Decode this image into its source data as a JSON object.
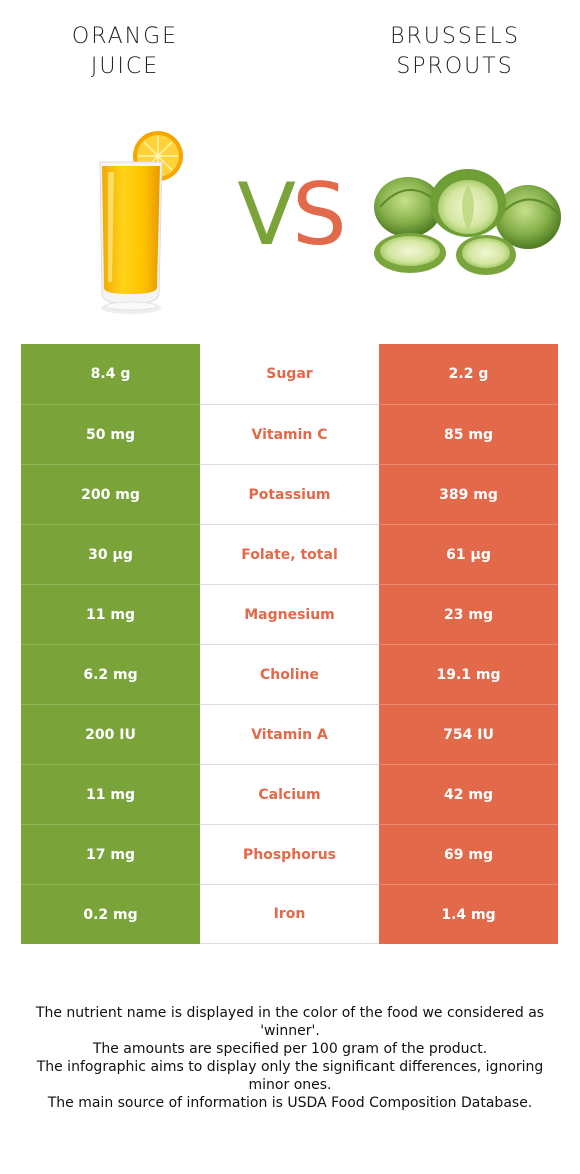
{
  "left_food": {
    "title_line1": "ORANGE",
    "title_line2": "JUICE",
    "color": "#7aa43a",
    "image": "orange-juice-glass"
  },
  "right_food": {
    "title_line1": "BRUSSELS",
    "title_line2": "SPROUTS",
    "color": "#e2694a",
    "image": "brussels-sprouts"
  },
  "vs": {
    "v": "V",
    "s": "S"
  },
  "rows": [
    {
      "left": "8.4 g",
      "nutrient": "Sugar",
      "right": "2.2 g"
    },
    {
      "left": "50 mg",
      "nutrient": "Vitamin C",
      "right": "85 mg"
    },
    {
      "left": "200 mg",
      "nutrient": "Potassium",
      "right": "389 mg"
    },
    {
      "left": "30 µg",
      "nutrient": "Folate, total",
      "right": "61 µg"
    },
    {
      "left": "11 mg",
      "nutrient": "Magnesium",
      "right": "23 mg"
    },
    {
      "left": "6.2 mg",
      "nutrient": "Choline",
      "right": "19.1 mg"
    },
    {
      "left": "200 IU",
      "nutrient": "Vitamin A",
      "right": "754 IU"
    },
    {
      "left": "11 mg",
      "nutrient": "Calcium",
      "right": "42 mg"
    },
    {
      "left": "17 mg",
      "nutrient": "Phosphorus",
      "right": "69 mg"
    },
    {
      "left": "0.2 mg",
      "nutrient": "Iron",
      "right": "1.4 mg"
    }
  ],
  "footer": {
    "line1": "The nutrient name is displayed in the color of the food we considered as 'winner'.",
    "line2": "The amounts are specified per 100 gram of the product.",
    "line3": "The infographic aims to display only the significant differences, ignoring minor ones.",
    "line4": "The main source of information is USDA Food Composition Database."
  }
}
